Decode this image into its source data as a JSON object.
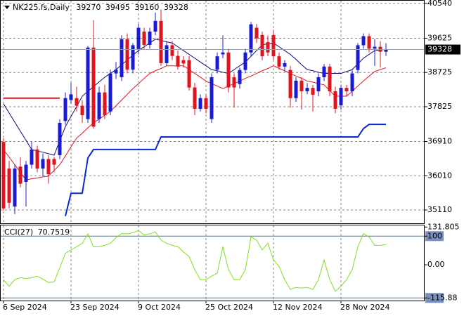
{
  "chart_data": [
    {
      "type": "candlestick",
      "title": "NK225.fs,Daily",
      "categories": [
        "6 Sep 2024",
        null,
        null,
        null,
        null,
        null,
        null,
        null,
        null,
        null,
        null,
        null,
        "23 Sep 2024",
        null,
        null,
        null,
        null,
        null,
        null,
        null,
        null,
        null,
        null,
        null,
        "9 Oct 2024",
        null,
        null,
        null,
        null,
        null,
        null,
        null,
        null,
        null,
        null,
        null,
        "25 Oct 2024",
        null,
        null,
        null,
        null,
        null,
        null,
        null,
        null,
        null,
        null,
        null,
        "12 Nov 2024",
        null,
        null,
        null,
        null,
        null,
        null,
        null,
        null,
        null,
        null,
        null,
        "28 Nov 2024",
        null,
        null,
        null,
        null,
        null,
        null,
        null,
        null
      ],
      "ohlc": [
        [
          36900,
          37000,
          35100,
          35150
        ],
        [
          36200,
          36400,
          35150,
          35300
        ],
        [
          35200,
          36300,
          35000,
          36200
        ],
        [
          36250,
          36500,
          35700,
          35800
        ],
        [
          35850,
          36400,
          35200,
          36300
        ],
        [
          36300,
          36900,
          36200,
          36700
        ],
        [
          36700,
          36800,
          36100,
          36200
        ],
        [
          36200,
          36600,
          36000,
          36450
        ],
        [
          36450,
          36550,
          35800,
          36050
        ],
        [
          36450,
          36500,
          36100,
          36300
        ],
        [
          36550,
          37500,
          36450,
          37400
        ],
        [
          37450,
          38200,
          37350,
          38050
        ],
        [
          38000,
          38450,
          37900,
          38150
        ],
        [
          38050,
          38350,
          37700,
          37850
        ],
        [
          37850,
          38000,
          37400,
          37600
        ],
        [
          37500,
          39420,
          37400,
          39380
        ],
        [
          39380,
          40100,
          37250,
          37300
        ],
        [
          37500,
          38350,
          37400,
          38200
        ],
        [
          38200,
          38400,
          37500,
          37600
        ],
        [
          37700,
          38800,
          37600,
          38700
        ],
        [
          38700,
          39000,
          38550,
          38800
        ],
        [
          38600,
          39700,
          38500,
          39600
        ],
        [
          39600,
          39750,
          38700,
          38800
        ],
        [
          38800,
          39500,
          38700,
          39440
        ],
        [
          39340,
          40000,
          39200,
          39900
        ],
        [
          39800,
          39900,
          39350,
          39450
        ],
        [
          39450,
          39900,
          39350,
          39800
        ],
        [
          39800,
          40300,
          39700,
          40080
        ],
        [
          40080,
          40380,
          38900,
          38970
        ],
        [
          38970,
          39550,
          38900,
          39440
        ],
        [
          39440,
          39550,
          39050,
          39160
        ],
        [
          39160,
          39300,
          38800,
          38880
        ],
        [
          39050,
          39150,
          38850,
          38960
        ],
        [
          39050,
          39150,
          38250,
          38330
        ],
        [
          38330,
          38450,
          37600,
          37770
        ],
        [
          37770,
          38150,
          37700,
          38050
        ],
        [
          38050,
          38150,
          37650,
          37770
        ],
        [
          37500,
          38700,
          37400,
          38600
        ],
        [
          38800,
          39250,
          38700,
          39150
        ],
        [
          39200,
          39700,
          39100,
          39250
        ],
        [
          39250,
          39350,
          38200,
          38330
        ],
        [
          38600,
          38700,
          37800,
          38330
        ],
        [
          38420,
          38850,
          38300,
          38790
        ],
        [
          38790,
          39350,
          38700,
          39250
        ],
        [
          39250,
          40050,
          39150,
          39990
        ],
        [
          39900,
          40000,
          39500,
          39620
        ],
        [
          39710,
          39800,
          39050,
          39150
        ],
        [
          39520,
          39700,
          39150,
          39250
        ],
        [
          39710,
          39850,
          39050,
          39150
        ],
        [
          39150,
          39250,
          38800,
          38880
        ],
        [
          38880,
          39050,
          38750,
          38970
        ],
        [
          38790,
          38900,
          37800,
          38050
        ],
        [
          38050,
          38600,
          37950,
          38510
        ],
        [
          38510,
          38600,
          37750,
          38230
        ],
        [
          38230,
          38450,
          38150,
          38320
        ],
        [
          38320,
          38400,
          37700,
          38140
        ],
        [
          38230,
          38700,
          38100,
          38600
        ],
        [
          38600,
          38950,
          38500,
          38880
        ],
        [
          38880,
          38950,
          38100,
          38230
        ],
        [
          38230,
          38350,
          37650,
          37770
        ],
        [
          37860,
          38400,
          37750,
          38320
        ],
        [
          38320,
          38400,
          38100,
          38230
        ],
        [
          38230,
          38800,
          38100,
          38700
        ],
        [
          38790,
          39500,
          38700,
          39440
        ],
        [
          39440,
          39750,
          39350,
          39680
        ],
        [
          39680,
          39750,
          39250,
          39350
        ],
        [
          39350,
          39600,
          38900,
          39400
        ],
        [
          39400,
          39550,
          38850,
          39270
        ],
        [
          39270,
          39495,
          39160,
          39328
        ]
      ],
      "up_color": "#1a1ad6",
      "down_color": "#e0141e",
      "series": [
        {
          "color": "#0a0a7a",
          "values": [
            37900,
            37660,
            37420,
            37180,
            36940,
            36700,
            36660,
            36630,
            36590,
            36550,
            36930,
            37300,
            37570,
            37830,
            38100,
            38230,
            38350,
            38480,
            38600,
            38700,
            38800,
            38930,
            39050,
            39180,
            39300,
            39400,
            39500,
            39600,
            39570,
            39530,
            39500,
            39400,
            39300,
            39200,
            39100,
            39000,
            38900,
            38800,
            38770,
            38730,
            38700,
            38800,
            38900,
            39000,
            39150,
            39300,
            39450,
            39480,
            39500,
            39400,
            39300,
            39200,
            39070,
            38930,
            38800,
            38770,
            38730,
            38700,
            38700,
            38700,
            38700,
            38750,
            38800,
            38950,
            39100,
            39200,
            39300,
            39320,
            39330
          ]
        },
        {
          "color": "#e0141e",
          "values": [
            36700,
            36500,
            36300,
            36100,
            35900,
            35930,
            35950,
            35980,
            36000,
            36150,
            36300,
            36530,
            36770,
            37000,
            37130,
            37270,
            37400,
            37500,
            37600,
            37700,
            37850,
            38000,
            38150,
            38300,
            38430,
            38570,
            38700,
            38770,
            38830,
            38900,
            38900,
            38900,
            38900,
            38800,
            38700,
            38600,
            38500,
            38430,
            38370,
            38300,
            38370,
            38430,
            38500,
            38570,
            38630,
            38700,
            38770,
            38830,
            38900,
            38830,
            38770,
            38700,
            38630,
            38570,
            38500,
            38470,
            38430,
            38400,
            38250,
            38100,
            38100,
            38100,
            38230,
            38370,
            38500,
            38630,
            38750,
            38800,
            38850
          ]
        },
        {
          "color": "#e0141e",
          "width": 2,
          "values": [
            38050,
            38050,
            38050,
            38050,
            38050,
            38050,
            38050,
            38050,
            38050,
            38050,
            38050,
            null,
            null,
            null,
            null,
            null,
            null,
            null,
            null,
            null,
            null,
            null,
            null,
            null,
            null,
            null,
            null,
            null,
            null,
            null,
            null,
            null,
            null,
            null,
            null,
            null,
            null,
            null,
            null,
            null,
            null,
            null,
            null,
            null,
            null,
            null,
            null,
            null,
            null,
            null,
            null,
            null,
            null,
            null,
            null,
            null,
            null,
            null,
            null,
            null,
            null,
            null,
            null,
            null,
            null,
            null,
            null,
            null,
            null
          ]
        },
        {
          "color": "#0a28d2",
          "width": 2,
          "values": [
            null,
            null,
            null,
            null,
            null,
            null,
            null,
            null,
            null,
            null,
            null,
            34950,
            35550,
            35550,
            35550,
            36480,
            36700,
            36700,
            36700,
            36700,
            36700,
            36700,
            36700,
            36700,
            36700,
            36700,
            36700,
            36700,
            37030,
            37030,
            37030,
            37030,
            37030,
            37030,
            37030,
            37030,
            37030,
            37030,
            37030,
            37030,
            37030,
            37030,
            37030,
            37030,
            37030,
            37030,
            37030,
            37030,
            37030,
            37030,
            37030,
            37030,
            37030,
            37030,
            37030,
            37030,
            37030,
            37030,
            37030,
            37030,
            37030,
            37030,
            37030,
            37030,
            37250,
            37360,
            37360,
            37360,
            37360
          ]
        }
      ],
      "ylim": [
        34760,
        40630
      ],
      "yticks": [
        40540,
        39625,
        38725,
        37825,
        36910,
        36010,
        35110
      ],
      "grid": true
    },
    {
      "type": "line",
      "title": "CCI(27)",
      "series": [
        {
          "color": "#7ee01e",
          "values": [
            -52,
            -75,
            -52,
            -45,
            -48,
            -45,
            -40,
            -50,
            -62,
            -60,
            -10,
            40,
            52,
            63,
            75,
            108,
            63,
            63,
            68,
            75,
            95,
            109,
            108,
            112,
            120,
            104,
            108,
            115,
            86,
            75,
            68,
            63,
            45,
            29,
            -17,
            -52,
            -52,
            -40,
            -29,
            63,
            -17,
            -52,
            -52,
            -17,
            97,
            86,
            52,
            75,
            17,
            -6,
            -52,
            -86,
            -79,
            -81,
            -79,
            -86,
            -52,
            17,
            -52,
            -93,
            -75,
            -52,
            -17,
            63,
            109,
            97,
            68,
            68,
            70.7519
          ]
        }
      ],
      "ylim": [
        -125,
        140
      ],
      "yticks": [
        131.805,
        100,
        {
          "value": 0,
          "label": "0.00"
        },
        -115.88
      ]
    }
  ]
}
